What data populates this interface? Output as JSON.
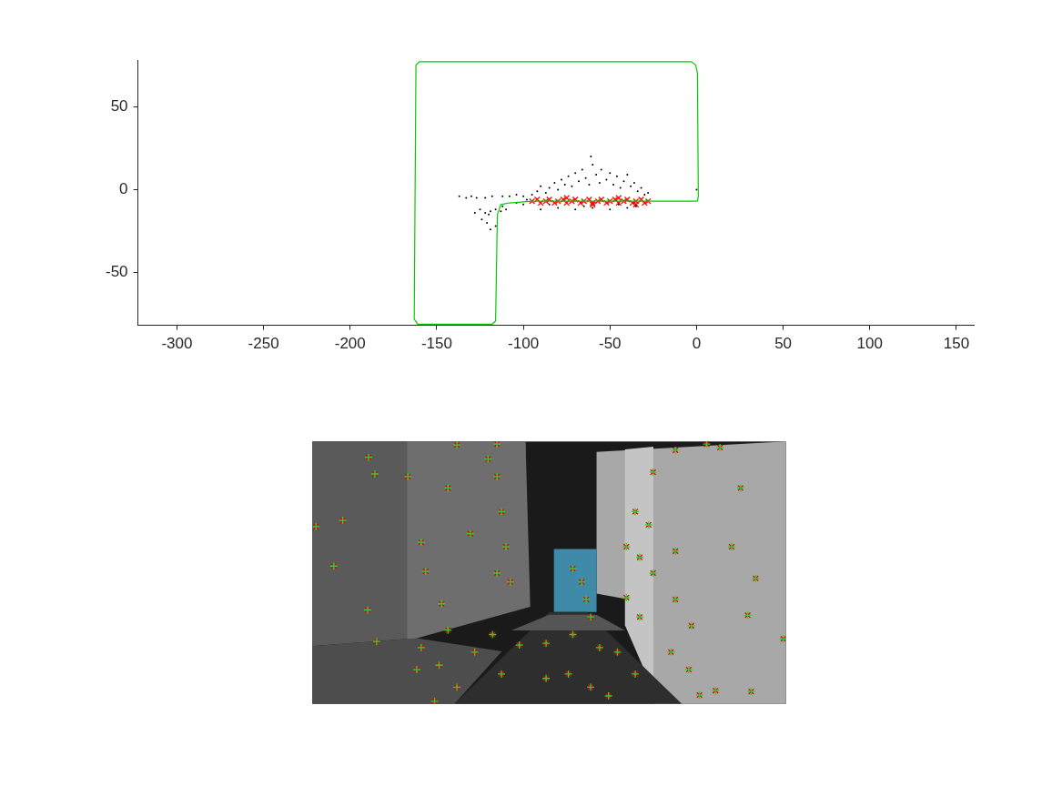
{
  "chart_data": [
    {
      "type": "scatter",
      "xlim": [
        -322.5,
        160
      ],
      "ylim": [
        -81.7,
        78
      ],
      "xticks": [
        -300,
        -250,
        -200,
        -150,
        -100,
        -50,
        0,
        50,
        100,
        150
      ],
      "yticks": [
        -50,
        0,
        50
      ],
      "grid": false,
      "series": [
        {
          "color": "#00cc00",
          "marker": "none",
          "line_style": "solid",
          "x": [
            0.5,
            1,
            0.5,
            -0.5,
            -3,
            -160,
            -162,
            -163,
            -161,
            -118,
            -116,
            -115,
            -113,
            -108,
            -95,
            -50,
            -20,
            -5,
            0.5
          ],
          "y": [
            -7,
            -4,
            70,
            75,
            77,
            77,
            75,
            -78,
            -81,
            -81,
            -79,
            -15,
            -9,
            -8,
            -7,
            -7,
            -7,
            -7,
            -7
          ]
        },
        {
          "color": "#000000",
          "marker": "point",
          "line_style": "none",
          "x": [
            -137,
            -133,
            -130,
            -127,
            -122,
            -118,
            -112,
            -108,
            -104,
            -100,
            -125,
            -122,
            -119,
            -116,
            -113,
            -110,
            -124,
            -121,
            -119,
            -116,
            -120,
            -128,
            -112,
            -98,
            -95,
            -92,
            -90,
            -87,
            -85,
            -82,
            -80,
            -78,
            -76,
            -74,
            -72,
            -70,
            -68,
            -66,
            -64,
            -62,
            -60,
            -61,
            -58,
            -56,
            -55,
            -52,
            -50,
            -48,
            -46,
            -44,
            -42,
            -40,
            -38,
            -36,
            -34,
            -32,
            -30,
            -28,
            -90,
            -80,
            -70,
            -60,
            -50,
            -40,
            -85,
            -65,
            -45,
            -35,
            -100,
            -104,
            0
          ],
          "y": [
            -4,
            -5,
            -4,
            -5,
            -5,
            -4,
            -4,
            -4,
            -3,
            -4,
            -12,
            -14,
            -13,
            -12,
            -13,
            -12,
            -18,
            -20,
            -24,
            -22,
            -15,
            -14,
            -10,
            -6,
            -3,
            -1,
            2,
            -2,
            1,
            4,
            0,
            6,
            3,
            8,
            2,
            10,
            5,
            12,
            7,
            3,
            15,
            20,
            9,
            4,
            12,
            6,
            10,
            3,
            8,
            1,
            5,
            9,
            2,
            4,
            -1,
            1,
            -3,
            -2,
            -12,
            -11,
            -12,
            -11,
            -12,
            -11,
            -9,
            -10,
            -9,
            -10,
            -9,
            -8,
            0
          ]
        },
        {
          "color": "#ff0000",
          "marker": "x",
          "line_style": "none",
          "x": [
            -95,
            -92,
            -90,
            -87,
            -85,
            -82,
            -80,
            -77,
            -75,
            -72,
            -70,
            -67,
            -65,
            -62,
            -60,
            -57,
            -55,
            -52,
            -50,
            -47,
            -45,
            -42,
            -40,
            -37,
            -35,
            -32,
            -30,
            -28,
            -75,
            -60,
            -45,
            -35
          ],
          "y": [
            -7,
            -6,
            -8,
            -7,
            -6,
            -8,
            -7,
            -6,
            -8,
            -7,
            -6,
            -8,
            -7,
            -6,
            -8,
            -7,
            -6,
            -8,
            -7,
            -6,
            -8,
            -7,
            -6,
            -8,
            -7,
            -6,
            -8,
            -7,
            -5,
            -9,
            -5,
            -9
          ]
        }
      ]
    },
    {
      "type": "scatter",
      "xlim": [
        0,
        531
      ],
      "ylim": [
        0,
        299
      ],
      "tick_labels": false,
      "grid": false,
      "series": [
        {
          "color": "#33cc33",
          "marker": "+",
          "line_style": "none",
          "x": [
            63,
            70,
            4,
            34,
            24,
            62,
            72,
            137,
            107,
            152,
            197,
            207,
            212,
            217,
            127,
            145,
            122,
            177,
            162,
            207,
            442,
            457,
            480,
            470,
            497,
            488,
            528,
            492,
            452,
            434,
            407,
            382,
            362,
            377,
            407,
            382,
            407,
            352,
            367,
            425,
            402,
            422,
            362,
            302,
            307,
            292,
            262,
            232,
            202,
            182,
            152,
            122,
            117,
            142,
            162,
            212,
            262,
            287,
            312,
            332,
            342,
            322,
            207,
            222,
            292,
            312,
            352,
            367
          ],
          "y": [
            281,
            262,
            202,
            209,
            157,
            107,
            71,
            3,
            259,
            246,
            279,
            259,
            219,
            179,
            151,
            114,
            184,
            194,
            295,
            296,
            296,
            292,
            246,
            179,
            143,
            101,
            74,
            14,
            15,
            10,
            289,
            264,
            219,
            204,
            174,
            149,
            119,
            121,
            99,
            89,
            59,
            39,
            34,
            139,
            119,
            79,
            69,
            67,
            79,
            59,
            84,
            64,
            39,
            44,
            19,
            34,
            29,
            34,
            19,
            9,
            59,
            64,
            149,
            139,
            154,
            99,
            179,
            167
          ]
        },
        {
          "color": "#e60000",
          "marker": "x",
          "line_style": "none",
          "x": [
            63,
            70,
            4,
            34,
            24,
            62,
            72,
            137,
            107,
            152,
            197,
            207,
            212,
            217,
            127,
            145,
            122,
            177,
            162,
            207,
            442,
            457,
            480,
            470,
            497,
            488,
            528,
            492,
            452,
            434,
            407,
            382,
            362,
            377,
            407,
            382,
            407,
            352,
            367,
            425,
            402,
            422,
            362,
            302,
            307,
            292,
            262,
            232,
            202,
            182,
            152,
            122,
            117,
            142,
            162,
            212,
            262,
            287,
            312,
            332,
            342,
            322,
            207,
            222,
            292,
            312,
            352,
            367
          ],
          "y": [
            281,
            262,
            202,
            209,
            157,
            107,
            71,
            3,
            259,
            246,
            279,
            259,
            219,
            179,
            151,
            114,
            184,
            194,
            295,
            296,
            296,
            292,
            246,
            179,
            143,
            101,
            74,
            14,
            15,
            10,
            289,
            264,
            219,
            204,
            174,
            149,
            119,
            121,
            99,
            89,
            59,
            39,
            34,
            139,
            119,
            79,
            69,
            67,
            79,
            59,
            84,
            64,
            39,
            44,
            19,
            34,
            29,
            34,
            19,
            9,
            59,
            64,
            149,
            139,
            154,
            99,
            179,
            167
          ]
        }
      ]
    }
  ]
}
